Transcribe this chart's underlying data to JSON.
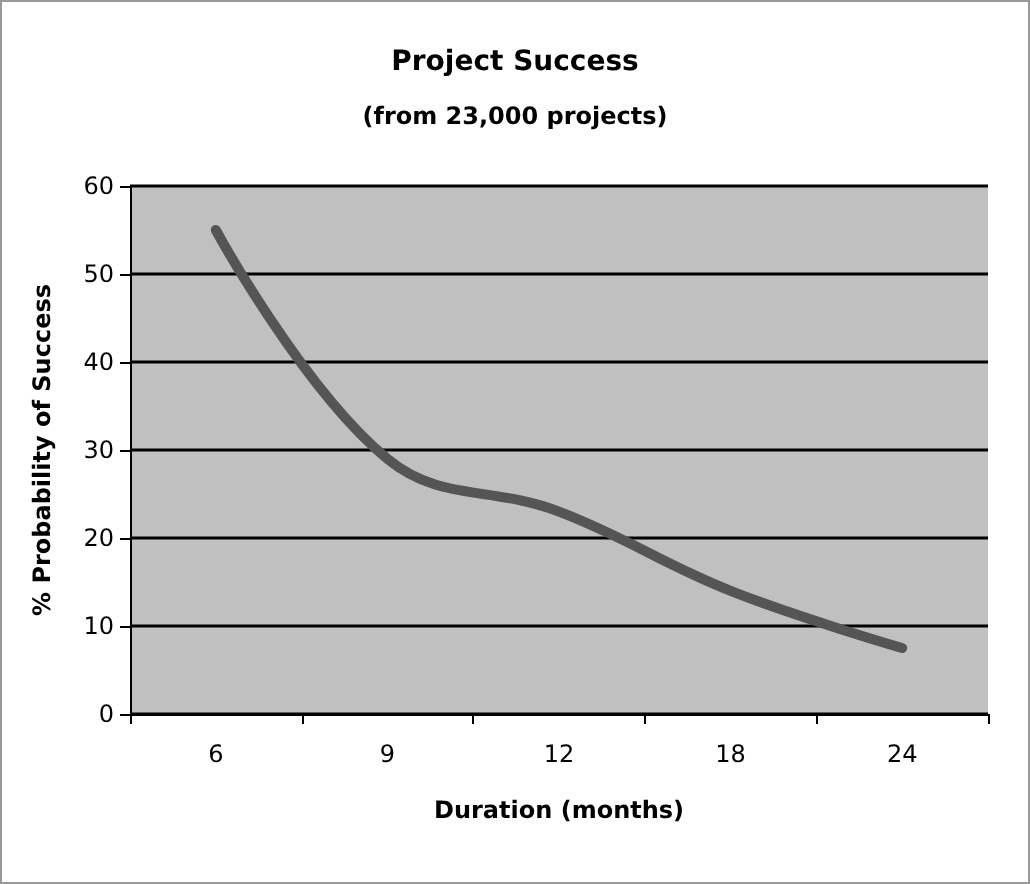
{
  "chart_data": {
    "type": "line",
    "title": "Project Success",
    "subtitle": "(from 23,000 projects)",
    "xlabel": "Duration (months)",
    "ylabel": "% Probability of Success",
    "categories": [
      "6",
      "9",
      "12",
      "18",
      "24"
    ],
    "series": [
      {
        "color": "#555555",
        "values": [
          55,
          29,
          23,
          14,
          7.5
        ]
      }
    ],
    "ylim": [
      0,
      60
    ],
    "yticks": [
      0,
      10,
      20,
      30,
      40,
      50,
      60
    ],
    "grid": "y",
    "marker": "none",
    "line_style": "solid"
  }
}
